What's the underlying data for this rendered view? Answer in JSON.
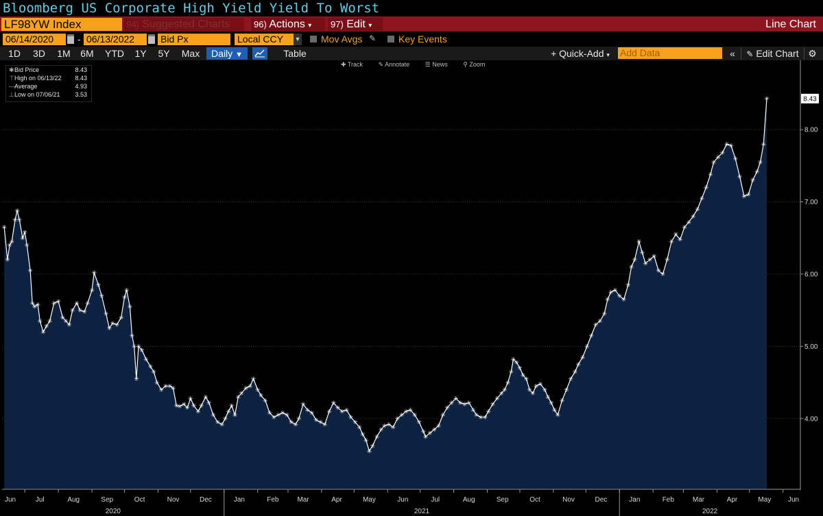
{
  "title": "Bloomberg US Corporate High Yield Yield To Worst",
  "command_bar": {
    "ticker": "LF98YW Index",
    "suggested_num": "94)",
    "suggested": "Suggested Charts",
    "actions_num": "96)",
    "actions": "Actions",
    "edit_num": "97)",
    "edit": "Edit",
    "chart_type": "Line Chart"
  },
  "params": {
    "start_date": "06/14/2020",
    "dash": "-",
    "end_date": "06/13/2022",
    "field": "Bid Px",
    "currency": "Local CCY",
    "mov_avgs": "Mov Avgs",
    "key_events": "Key Events"
  },
  "range_bar": {
    "ranges": [
      "1D",
      "3D",
      "1M",
      "6M",
      "YTD",
      "1Y",
      "5Y",
      "Max"
    ],
    "periodicity": "Daily",
    "table": "Table",
    "quick_add": "+ Quick-Add",
    "add_data_placeholder": "Add Data",
    "edit_chart": "Edit Chart"
  },
  "chart_toolbar": [
    "Track",
    "Annotate",
    "News",
    "Zoom"
  ],
  "legend": {
    "rows": [
      {
        "label": "Bid Price",
        "value": "8.43"
      },
      {
        "label": "High on 06/13/22",
        "value": "8.43"
      },
      {
        "label": "Average",
        "value": "4.93"
      },
      {
        "label": "Low on 07/06/21",
        "value": "3.53"
      }
    ]
  },
  "colors": {
    "background": "#000000",
    "line": "#ffffff",
    "area_fill": "#0d2140",
    "accent_orange": "#f7a21b",
    "command_red": "#8e1520",
    "title_cyan": "#5fd0e6"
  },
  "chart_data": {
    "type": "area",
    "title": "Bloomberg US Corporate High Yield Yield To Worst",
    "series": [
      {
        "name": "Bid Price",
        "points": [
          [
            "2020-06-12",
            6.65
          ],
          [
            "2020-06-15",
            6.2
          ],
          [
            "2020-06-17",
            6.4
          ],
          [
            "2020-06-19",
            6.45
          ],
          [
            "2020-06-22",
            6.75
          ],
          [
            "2020-06-24",
            6.88
          ],
          [
            "2020-06-26",
            6.75
          ],
          [
            "2020-06-29",
            6.5
          ],
          [
            "2020-07-01",
            6.58
          ],
          [
            "2020-07-03",
            6.4
          ],
          [
            "2020-07-06",
            6.05
          ],
          [
            "2020-07-08",
            5.6
          ],
          [
            "2020-07-10",
            5.55
          ],
          [
            "2020-07-13",
            5.58
          ],
          [
            "2020-07-15",
            5.35
          ],
          [
            "2020-07-18",
            5.2
          ],
          [
            "2020-07-21",
            5.28
          ],
          [
            "2020-07-24",
            5.35
          ],
          [
            "2020-07-28",
            5.6
          ],
          [
            "2020-08-01",
            5.62
          ],
          [
            "2020-08-05",
            5.4
          ],
          [
            "2020-08-08",
            5.35
          ],
          [
            "2020-08-11",
            5.3
          ],
          [
            "2020-08-14",
            5.5
          ],
          [
            "2020-08-18",
            5.6
          ],
          [
            "2020-08-21",
            5.5
          ],
          [
            "2020-08-25",
            5.48
          ],
          [
            "2020-08-28",
            5.6
          ],
          [
            "2020-09-01",
            5.78
          ],
          [
            "2020-09-03",
            6.02
          ],
          [
            "2020-09-07",
            5.85
          ],
          [
            "2020-09-10",
            5.7
          ],
          [
            "2020-09-14",
            5.45
          ],
          [
            "2020-09-17",
            5.25
          ],
          [
            "2020-09-20",
            5.32
          ],
          [
            "2020-09-24",
            5.3
          ],
          [
            "2020-09-28",
            5.4
          ],
          [
            "2020-10-01",
            5.68
          ],
          [
            "2020-10-03",
            5.78
          ],
          [
            "2020-10-06",
            5.55
          ],
          [
            "2020-10-08",
            5.15
          ],
          [
            "2020-10-10",
            5.0
          ],
          [
            "2020-10-12",
            4.55
          ],
          [
            "2020-10-14",
            5.0
          ],
          [
            "2020-10-17",
            4.95
          ],
          [
            "2020-10-21",
            4.82
          ],
          [
            "2020-10-25",
            4.72
          ],
          [
            "2020-10-28",
            4.65
          ],
          [
            "2020-10-31",
            4.5
          ],
          [
            "2020-11-04",
            4.4
          ],
          [
            "2020-11-08",
            4.45
          ],
          [
            "2020-11-12",
            4.45
          ],
          [
            "2020-11-15",
            4.42
          ],
          [
            "2020-11-18",
            4.18
          ],
          [
            "2020-11-21",
            4.17
          ],
          [
            "2020-11-25",
            4.2
          ],
          [
            "2020-11-28",
            4.15
          ],
          [
            "2020-12-01",
            4.28
          ],
          [
            "2020-12-04",
            4.18
          ],
          [
            "2020-12-08",
            4.1
          ],
          [
            "2020-12-11",
            4.18
          ],
          [
            "2020-12-15",
            4.3
          ],
          [
            "2020-12-18",
            4.22
          ],
          [
            "2020-12-22",
            4.05
          ],
          [
            "2020-12-26",
            3.95
          ],
          [
            "2020-12-30",
            3.92
          ],
          [
            "2021-01-02",
            4.0
          ],
          [
            "2021-01-05",
            4.1
          ],
          [
            "2021-01-08",
            4.18
          ],
          [
            "2021-01-11",
            4.05
          ],
          [
            "2021-01-14",
            4.3
          ],
          [
            "2021-01-17",
            4.35
          ],
          [
            "2021-01-21",
            4.42
          ],
          [
            "2021-01-25",
            4.45
          ],
          [
            "2021-01-28",
            4.55
          ],
          [
            "2021-02-01",
            4.4
          ],
          [
            "2021-02-04",
            4.32
          ],
          [
            "2021-02-08",
            4.25
          ],
          [
            "2021-02-12",
            4.08
          ],
          [
            "2021-02-16",
            4.02
          ],
          [
            "2021-02-20",
            4.05
          ],
          [
            "2021-02-24",
            4.08
          ],
          [
            "2021-02-28",
            4.05
          ],
          [
            "2021-03-04",
            3.95
          ],
          [
            "2021-03-08",
            3.92
          ],
          [
            "2021-03-11",
            4.0
          ],
          [
            "2021-03-15",
            4.2
          ],
          [
            "2021-03-19",
            4.12
          ],
          [
            "2021-03-23",
            4.08
          ],
          [
            "2021-03-27",
            3.98
          ],
          [
            "2021-03-31",
            3.95
          ],
          [
            "2021-04-04",
            3.92
          ],
          [
            "2021-04-08",
            4.1
          ],
          [
            "2021-04-12",
            4.22
          ],
          [
            "2021-04-16",
            4.15
          ],
          [
            "2021-04-20",
            4.1
          ],
          [
            "2021-04-24",
            4.12
          ],
          [
            "2021-04-28",
            4.02
          ],
          [
            "2021-05-02",
            3.95
          ],
          [
            "2021-05-06",
            3.88
          ],
          [
            "2021-05-09",
            3.78
          ],
          [
            "2021-05-12",
            3.7
          ],
          [
            "2021-05-15",
            3.55
          ],
          [
            "2021-05-18",
            3.62
          ],
          [
            "2021-05-22",
            3.75
          ],
          [
            "2021-05-26",
            3.85
          ],
          [
            "2021-05-29",
            3.9
          ],
          [
            "2021-06-02",
            3.92
          ],
          [
            "2021-06-06",
            3.88
          ],
          [
            "2021-06-10",
            4.0
          ],
          [
            "2021-06-14",
            4.05
          ],
          [
            "2021-06-18",
            4.1
          ],
          [
            "2021-06-22",
            4.12
          ],
          [
            "2021-06-26",
            4.05
          ],
          [
            "2021-06-30",
            3.95
          ],
          [
            "2021-07-04",
            3.82
          ],
          [
            "2021-07-06",
            3.75
          ],
          [
            "2021-07-10",
            3.8
          ],
          [
            "2021-07-14",
            3.85
          ],
          [
            "2021-07-18",
            3.9
          ],
          [
            "2021-07-22",
            4.05
          ],
          [
            "2021-07-26",
            4.15
          ],
          [
            "2021-07-30",
            4.22
          ],
          [
            "2021-08-03",
            4.28
          ],
          [
            "2021-08-07",
            4.22
          ],
          [
            "2021-08-11",
            4.2
          ],
          [
            "2021-08-15",
            4.22
          ],
          [
            "2021-08-19",
            4.12
          ],
          [
            "2021-08-22",
            4.05
          ],
          [
            "2021-08-26",
            4.02
          ],
          [
            "2021-08-30",
            4.02
          ],
          [
            "2021-09-02",
            4.1
          ],
          [
            "2021-09-06",
            4.2
          ],
          [
            "2021-09-10",
            4.28
          ],
          [
            "2021-09-14",
            4.35
          ],
          [
            "2021-09-17",
            4.4
          ],
          [
            "2021-09-20",
            4.5
          ],
          [
            "2021-09-23",
            4.65
          ],
          [
            "2021-09-25",
            4.82
          ],
          [
            "2021-09-28",
            4.78
          ],
          [
            "2021-10-01",
            4.7
          ],
          [
            "2021-10-04",
            4.6
          ],
          [
            "2021-10-07",
            4.55
          ],
          [
            "2021-10-10",
            4.4
          ],
          [
            "2021-10-13",
            4.35
          ],
          [
            "2021-10-16",
            4.45
          ],
          [
            "2021-10-20",
            4.48
          ],
          [
            "2021-10-24",
            4.4
          ],
          [
            "2021-10-27",
            4.3
          ],
          [
            "2021-10-30",
            4.22
          ],
          [
            "2021-11-02",
            4.12
          ],
          [
            "2021-11-05",
            4.05
          ],
          [
            "2021-11-09",
            4.25
          ],
          [
            "2021-11-13",
            4.4
          ],
          [
            "2021-11-17",
            4.55
          ],
          [
            "2021-11-21",
            4.65
          ],
          [
            "2021-11-24",
            4.75
          ],
          [
            "2021-11-28",
            4.85
          ],
          [
            "2021-12-02",
            5.0
          ],
          [
            "2021-12-06",
            5.15
          ],
          [
            "2021-12-10",
            5.3
          ],
          [
            "2021-12-14",
            5.35
          ],
          [
            "2021-12-18",
            5.45
          ],
          [
            "2021-12-21",
            5.65
          ],
          [
            "2021-12-24",
            5.75
          ],
          [
            "2021-12-28",
            5.78
          ],
          [
            "2022-01-01",
            5.7
          ],
          [
            "2022-01-05",
            5.65
          ],
          [
            "2022-01-09",
            5.85
          ],
          [
            "2022-01-12",
            6.1
          ],
          [
            "2022-01-15",
            6.2
          ],
          [
            "2022-01-19",
            6.45
          ],
          [
            "2022-01-22",
            6.3
          ],
          [
            "2022-01-25",
            6.15
          ],
          [
            "2022-01-29",
            6.2
          ],
          [
            "2022-02-02",
            6.25
          ],
          [
            "2022-02-06",
            6.05
          ],
          [
            "2022-02-10",
            6.0
          ],
          [
            "2022-02-14",
            6.2
          ],
          [
            "2022-02-18",
            6.45
          ],
          [
            "2022-02-22",
            6.55
          ],
          [
            "2022-02-26",
            6.48
          ],
          [
            "2022-03-02",
            6.65
          ],
          [
            "2022-03-06",
            6.72
          ],
          [
            "2022-03-10",
            6.8
          ],
          [
            "2022-03-14",
            6.9
          ],
          [
            "2022-03-18",
            7.05
          ],
          [
            "2022-03-22",
            7.2
          ],
          [
            "2022-03-26",
            7.38
          ],
          [
            "2022-03-29",
            7.55
          ],
          [
            "2022-04-02",
            7.62
          ],
          [
            "2022-04-06",
            7.68
          ],
          [
            "2022-04-10",
            7.8
          ],
          [
            "2022-04-14",
            7.78
          ],
          [
            "2022-04-18",
            7.6
          ],
          [
            "2022-04-22",
            7.35
          ],
          [
            "2022-04-26",
            7.08
          ],
          [
            "2022-04-30",
            7.1
          ],
          [
            "2022-05-04",
            7.3
          ],
          [
            "2022-05-08",
            7.42
          ],
          [
            "2022-05-11",
            7.55
          ],
          [
            "2022-05-14",
            7.8
          ],
          [
            "2022-05-17",
            8.43
          ]
        ]
      }
    ],
    "x_tick_labels": [
      "Jun",
      "Jul",
      "Aug",
      "Sep",
      "Oct",
      "Nov",
      "Dec",
      "Jan",
      "Feb",
      "Mar",
      "Apr",
      "May",
      "Jun",
      "Jul",
      "Aug",
      "Sep",
      "Oct",
      "Nov",
      "Dec",
      "Jan",
      "Feb",
      "Mar",
      "Apr",
      "May",
      "Jun"
    ],
    "year_labels": [
      "2020",
      "2021",
      "2022"
    ],
    "y_ticks": [
      4.0,
      5.0,
      6.0,
      7.0,
      8.0
    ],
    "y_tick_labels": [
      "4.00",
      "5.00",
      "6.00",
      "7.00",
      "8.00"
    ],
    "ylim": [
      3.03,
      8.96
    ],
    "last_value_label": "8.43",
    "grid": true,
    "legend_position": "top-left"
  }
}
